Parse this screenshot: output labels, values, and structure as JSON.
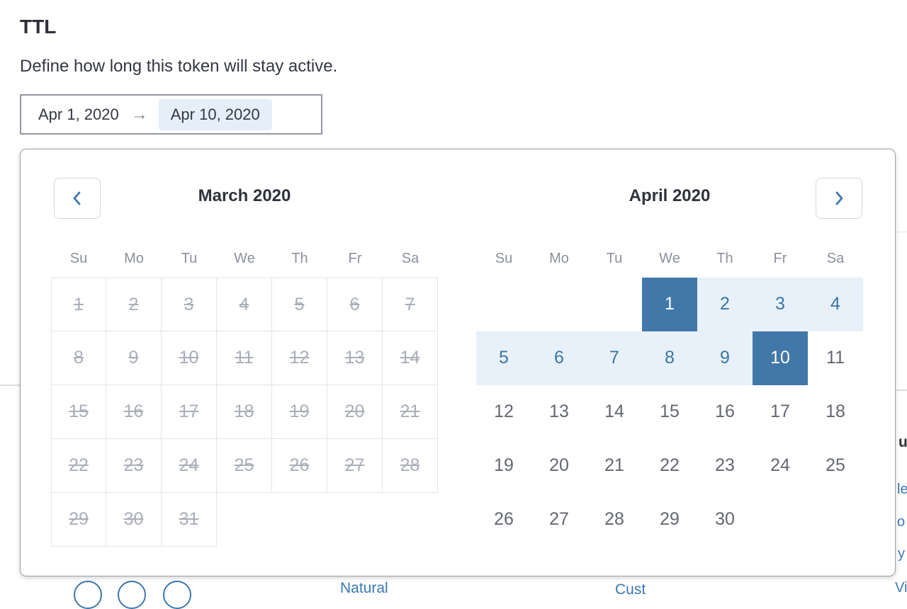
{
  "header": {
    "title": "TTL",
    "subtitle": "Define how long this token will stay active."
  },
  "date_range_input": {
    "start": "Apr 1, 2020",
    "separator_icon": "→",
    "end": "Apr 10, 2020"
  },
  "calendar_popup": {
    "prev_button_icon": "chevron-left",
    "next_button_icon": "chevron-right",
    "weekdays": [
      "Su",
      "Mo",
      "Tu",
      "We",
      "Th",
      "Fr",
      "Sa"
    ],
    "march": {
      "title": "March 2020",
      "all_days_disabled": true,
      "weeks": [
        [
          1,
          2,
          3,
          4,
          5,
          6,
          7
        ],
        [
          8,
          9,
          10,
          11,
          12,
          13,
          14
        ],
        [
          15,
          16,
          17,
          18,
          19,
          20,
          21
        ],
        [
          22,
          23,
          24,
          25,
          26,
          27,
          28
        ],
        [
          29,
          30,
          31,
          null,
          null,
          null,
          null
        ]
      ]
    },
    "april": {
      "title": "April 2020",
      "selected_start": 1,
      "selected_end": 10,
      "weeks": [
        [
          null,
          null,
          null,
          1,
          2,
          3,
          4
        ],
        [
          5,
          6,
          7,
          8,
          9,
          10,
          11
        ],
        [
          12,
          13,
          14,
          15,
          16,
          17,
          18
        ],
        [
          19,
          20,
          21,
          22,
          23,
          24,
          25
        ],
        [
          26,
          27,
          28,
          29,
          30,
          null,
          null
        ]
      ]
    }
  },
  "background": {
    "heading_fragment": "u",
    "link_fragment_1": "le",
    "link_fragment_2": "o",
    "link_fragment_3": "y",
    "bottom_link_1": "Natural",
    "bottom_link_2": "Cust",
    "bottom_link_3": "Vi",
    "circle_count": 3
  },
  "colors": {
    "selected_day_bg": "#4278a9",
    "in_range_bg": "#e8f1f9",
    "in_range_text": "#3a75a6",
    "accent_blue": "#3b77ac",
    "disabled_day_text": "#a9aeb8",
    "end_date_highlight_bg": "#e5effa",
    "link_blue": "#3b78b5"
  }
}
